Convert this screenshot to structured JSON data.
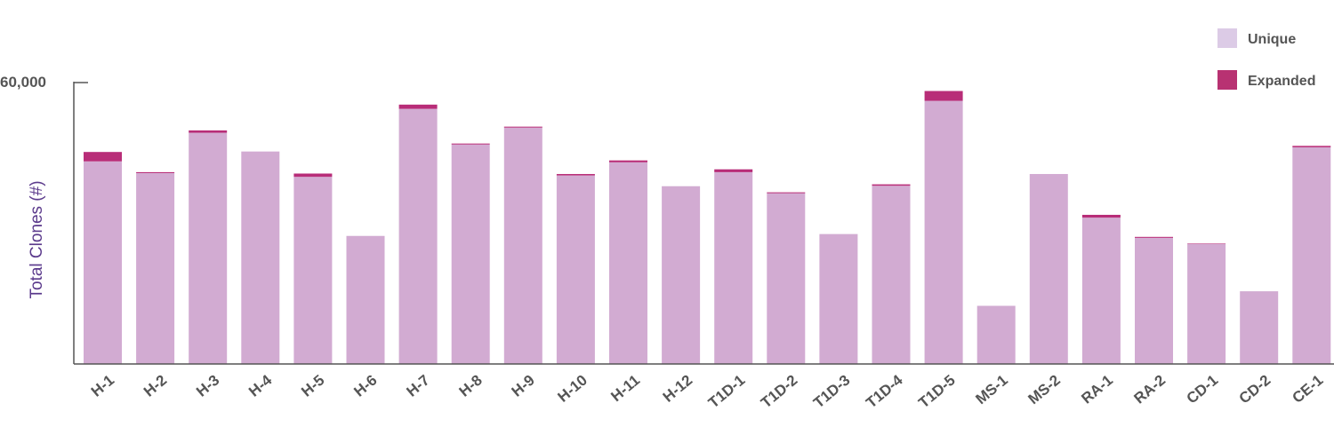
{
  "chart_data": {
    "type": "bar",
    "stacked": true,
    "ylabel": "Total Clones (#)",
    "xlabel": "",
    "ylim": [
      0,
      60000
    ],
    "yticks": [
      60000
    ],
    "ytick_labels": [
      "60,000"
    ],
    "grid": false,
    "legend_position": "top-right",
    "categories": [
      "H-1",
      "H-2",
      "H-3",
      "H-4",
      "H-5",
      "H-6",
      "H-7",
      "H-8",
      "H-9",
      "H-10",
      "H-11",
      "H-12",
      "T1D-1",
      "T1D-2",
      "T1D-3",
      "T1D-4",
      "T1D-5",
      "MS-1",
      "MS-2",
      "RA-1",
      "RA-2",
      "CD-1",
      "CD-2",
      "CE-1"
    ],
    "series": [
      {
        "name": "Unique",
        "color": "#d2abd2",
        "values": [
          43200,
          40700,
          49300,
          45300,
          39900,
          27300,
          54400,
          46800,
          50400,
          40200,
          43000,
          37900,
          40900,
          36400,
          27700,
          38000,
          56100,
          12400,
          40500,
          31200,
          26900,
          25600,
          15500,
          46200
        ]
      },
      {
        "name": "Expanded",
        "color": "#b82d78",
        "values": [
          2000,
          200,
          500,
          0,
          700,
          0,
          900,
          200,
          200,
          300,
          400,
          0,
          600,
          200,
          0,
          300,
          2100,
          0,
          0,
          600,
          200,
          100,
          0,
          300
        ]
      }
    ]
  },
  "legend": {
    "items": [
      {
        "label": "Unique",
        "color": "#dccbe6"
      },
      {
        "label": "Expanded",
        "color": "#b83272"
      }
    ]
  }
}
